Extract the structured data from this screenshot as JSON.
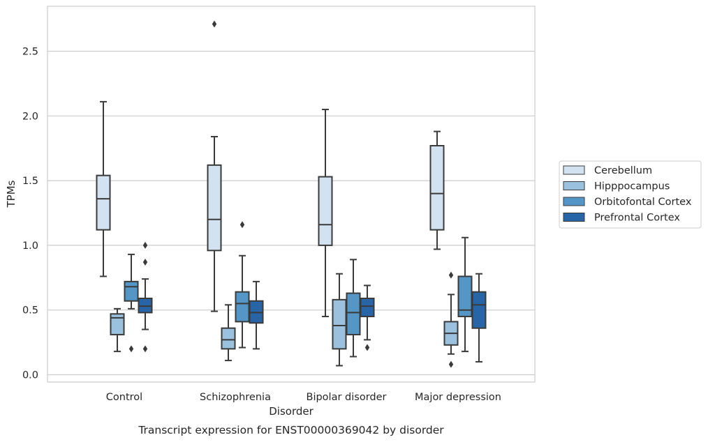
{
  "chart_data": {
    "type": "box",
    "title": "",
    "caption": "Transcript expression for ENST00000369042 by disorder",
    "xlabel": "Disorder",
    "ylabel": "TPMs",
    "ylim": [
      -0.05,
      2.83
    ],
    "yticks": [
      "0.0",
      "0.5",
      "1.0",
      "1.5",
      "2.0",
      "2.5"
    ],
    "ytick_values": [
      0.0,
      0.5,
      1.0,
      1.5,
      2.0,
      2.5
    ],
    "grid": true,
    "legend_position": "right",
    "categories": [
      "Control",
      "Schizophrenia",
      "Bipolar disorder",
      "Major depression"
    ],
    "series": [
      {
        "name": "Cerebellum",
        "color": "#d2e2f1",
        "boxes": [
          {
            "whisker_low": 0.76,
            "q1": 1.12,
            "median": 1.36,
            "q3": 1.54,
            "whisker_high": 2.11,
            "outliers": []
          },
          {
            "whisker_low": 0.49,
            "q1": 0.96,
            "median": 1.2,
            "q3": 1.62,
            "whisker_high": 1.84,
            "outliers": [
              2.71
            ]
          },
          {
            "whisker_low": 0.45,
            "q1": 1.0,
            "median": 1.16,
            "q3": 1.53,
            "whisker_high": 2.05,
            "outliers": []
          },
          {
            "whisker_low": 0.97,
            "q1": 1.12,
            "median": 1.4,
            "q3": 1.77,
            "whisker_high": 1.88,
            "outliers": []
          }
        ]
      },
      {
        "name": "Hipppocampus",
        "color": "#9ac2de",
        "boxes": [
          {
            "whisker_low": 0.18,
            "q1": 0.31,
            "median": 0.44,
            "q3": 0.47,
            "whisker_high": 0.51,
            "outliers": []
          },
          {
            "whisker_low": 0.11,
            "q1": 0.2,
            "median": 0.27,
            "q3": 0.36,
            "whisker_high": 0.54,
            "outliers": []
          },
          {
            "whisker_low": 0.07,
            "q1": 0.2,
            "median": 0.38,
            "q3": 0.58,
            "whisker_high": 0.78,
            "outliers": []
          },
          {
            "whisker_low": 0.16,
            "q1": 0.23,
            "median": 0.32,
            "q3": 0.41,
            "whisker_high": 0.62,
            "outliers": [
              0.08,
              0.77
            ]
          }
        ]
      },
      {
        "name": "Orbitofontal Cortex",
        "color": "#5497c6",
        "boxes": [
          {
            "whisker_low": 0.51,
            "q1": 0.57,
            "median": 0.68,
            "q3": 0.72,
            "whisker_high": 0.93,
            "outliers": [
              0.2
            ]
          },
          {
            "whisker_low": 0.21,
            "q1": 0.41,
            "median": 0.55,
            "q3": 0.64,
            "whisker_high": 0.92,
            "outliers": [
              1.16
            ]
          },
          {
            "whisker_low": 0.14,
            "q1": 0.31,
            "median": 0.48,
            "q3": 0.63,
            "whisker_high": 0.89,
            "outliers": []
          },
          {
            "whisker_low": 0.18,
            "q1": 0.45,
            "median": 0.5,
            "q3": 0.76,
            "whisker_high": 1.06,
            "outliers": []
          }
        ]
      },
      {
        "name": "Prefrontal Cortex",
        "color": "#2865a6",
        "boxes": [
          {
            "whisker_low": 0.35,
            "q1": 0.48,
            "median": 0.53,
            "q3": 0.59,
            "whisker_high": 0.74,
            "outliers": [
              0.2,
              0.87,
              1.0
            ]
          },
          {
            "whisker_low": 0.2,
            "q1": 0.4,
            "median": 0.48,
            "q3": 0.57,
            "whisker_high": 0.72,
            "outliers": []
          },
          {
            "whisker_low": 0.27,
            "q1": 0.45,
            "median": 0.53,
            "q3": 0.59,
            "whisker_high": 0.69,
            "outliers": [
              0.21
            ]
          },
          {
            "whisker_low": 0.1,
            "q1": 0.36,
            "median": 0.54,
            "q3": 0.64,
            "whisker_high": 0.78,
            "outliers": []
          }
        ]
      }
    ]
  }
}
